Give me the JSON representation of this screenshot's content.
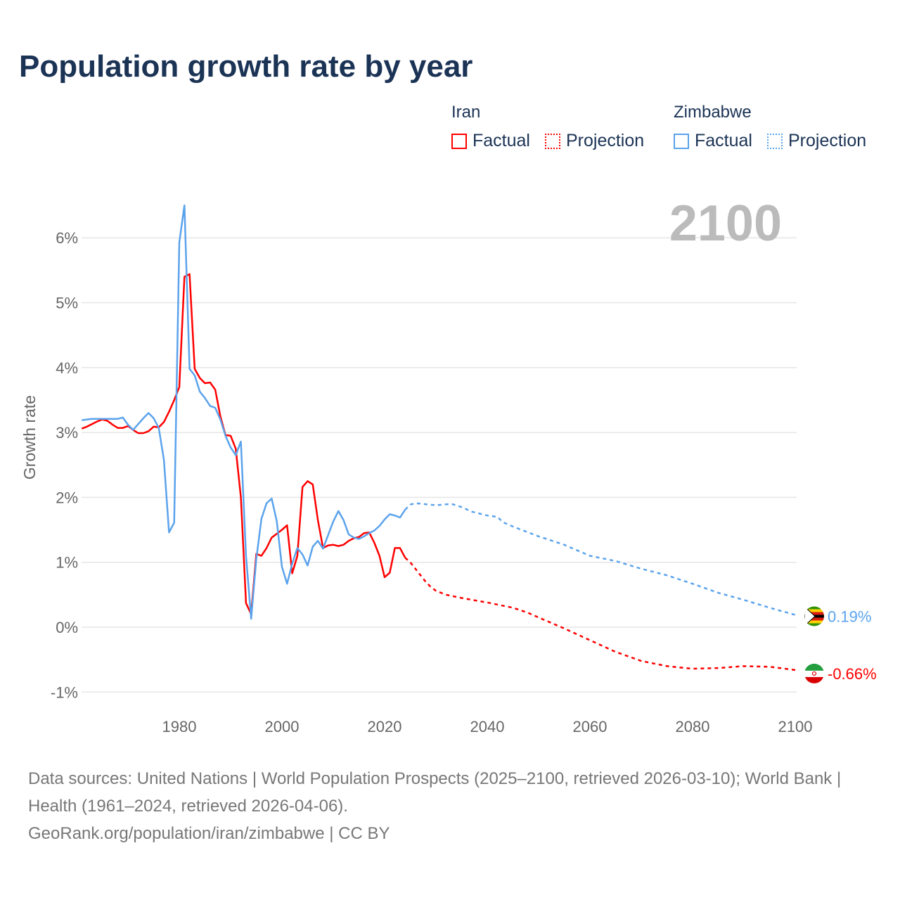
{
  "title": "Population growth rate by year",
  "legend": {
    "groups": [
      {
        "name": "Iran",
        "color": "#ff0000",
        "factual": "Factual",
        "projection": "Projection"
      },
      {
        "name": "Zimbabwe",
        "color": "#5ba3ec",
        "factual": "Factual",
        "projection": "Projection"
      }
    ]
  },
  "year_label": "2100",
  "footer": {
    "sources": "Data sources: United Nations | World Population Prospects (2025–2100, retrieved 2026-03-10); World Bank | Health (1961–2024, retrieved 2026-04-06).",
    "credit": "GeoRank.org/population/iran/zimbabwe | CC BY"
  },
  "chart_data": {
    "type": "line",
    "title": "Population growth rate by year",
    "xlabel": "",
    "ylabel": "Growth rate",
    "xlim": [
      1961,
      2100
    ],
    "ylim": [
      -1.15,
      6.7
    ],
    "x_ticks": [
      1980,
      2000,
      2020,
      2040,
      2060,
      2080,
      2100
    ],
    "x_tick_labels": [
      "1980",
      "2000",
      "2020",
      "2040",
      "2060",
      "2080",
      "2100"
    ],
    "y_ticks": [
      -1,
      0,
      1,
      2,
      3,
      4,
      5,
      6
    ],
    "y_tick_labels": [
      "-1%",
      "0%",
      "1%",
      "2%",
      "3%",
      "4%",
      "5%",
      "6%"
    ],
    "grid": true,
    "series": [
      {
        "name": "Iran",
        "color": "#ff0000",
        "end_label": "-0.66%",
        "factual": {
          "start": 1961,
          "values": [
            3.06,
            3.09,
            3.13,
            3.17,
            3.2,
            3.18,
            3.12,
            3.07,
            3.07,
            3.1,
            3.04,
            2.99,
            2.99,
            3.02,
            3.09,
            3.08,
            3.16,
            3.32,
            3.5,
            3.7,
            5.4,
            5.44,
            3.98,
            3.84,
            3.76,
            3.77,
            3.66,
            3.25,
            2.96,
            2.95,
            2.75,
            2.0,
            0.37,
            0.2,
            1.13,
            1.1,
            1.22,
            1.38,
            1.44,
            1.5,
            1.57,
            0.83,
            1.1,
            2.16,
            2.25,
            2.2,
            1.65,
            1.22,
            1.26,
            1.27,
            1.25,
            1.27,
            1.33,
            1.37,
            1.39,
            1.45,
            1.46,
            1.3,
            1.1,
            0.77,
            0.84,
            1.22,
            1.22,
            1.07
          ]
        },
        "projection": {
          "x": [
            2024,
            2025,
            2026,
            2027,
            2028,
            2029,
            2030,
            2032,
            2035,
            2040,
            2045,
            2048,
            2050,
            2055,
            2060,
            2065,
            2070,
            2075,
            2080,
            2085,
            2090,
            2095,
            2100
          ],
          "values": [
            1.07,
            1.0,
            0.9,
            0.8,
            0.7,
            0.62,
            0.56,
            0.5,
            0.45,
            0.38,
            0.3,
            0.22,
            0.15,
            -0.02,
            -0.2,
            -0.38,
            -0.52,
            -0.6,
            -0.64,
            -0.63,
            -0.6,
            -0.61,
            -0.66
          ]
        }
      },
      {
        "name": "Zimbabwe",
        "color": "#5ba3ec",
        "end_label": "0.19%",
        "factual": {
          "start": 1961,
          "values": [
            3.19,
            3.2,
            3.21,
            3.21,
            3.21,
            3.21,
            3.21,
            3.21,
            3.23,
            3.12,
            3.04,
            3.13,
            3.22,
            3.3,
            3.22,
            3.07,
            2.58,
            1.46,
            1.61,
            5.93,
            6.5,
            3.98,
            3.88,
            3.63,
            3.53,
            3.41,
            3.38,
            3.2,
            2.95,
            2.77,
            2.65,
            2.86,
            1.1,
            0.13,
            1.05,
            1.67,
            1.91,
            1.98,
            1.63,
            0.93,
            0.67,
            0.98,
            1.22,
            1.12,
            0.95,
            1.24,
            1.33,
            1.21,
            1.42,
            1.63,
            1.79,
            1.65,
            1.43,
            1.38,
            1.36,
            1.4,
            1.45,
            1.49,
            1.56,
            1.66,
            1.74,
            1.72,
            1.69,
            1.81
          ]
        },
        "projection": {
          "x": [
            2024,
            2025,
            2026,
            2030,
            2033,
            2035,
            2037,
            2040,
            2042,
            2043,
            2045,
            2050,
            2055,
            2060,
            2065,
            2070,
            2075,
            2080,
            2085,
            2090,
            2095,
            2100
          ],
          "values": [
            1.81,
            1.89,
            1.91,
            1.88,
            1.9,
            1.85,
            1.78,
            1.72,
            1.7,
            1.62,
            1.55,
            1.4,
            1.27,
            1.1,
            1.02,
            0.9,
            0.8,
            0.67,
            0.53,
            0.42,
            0.3,
            0.19
          ]
        }
      }
    ]
  }
}
